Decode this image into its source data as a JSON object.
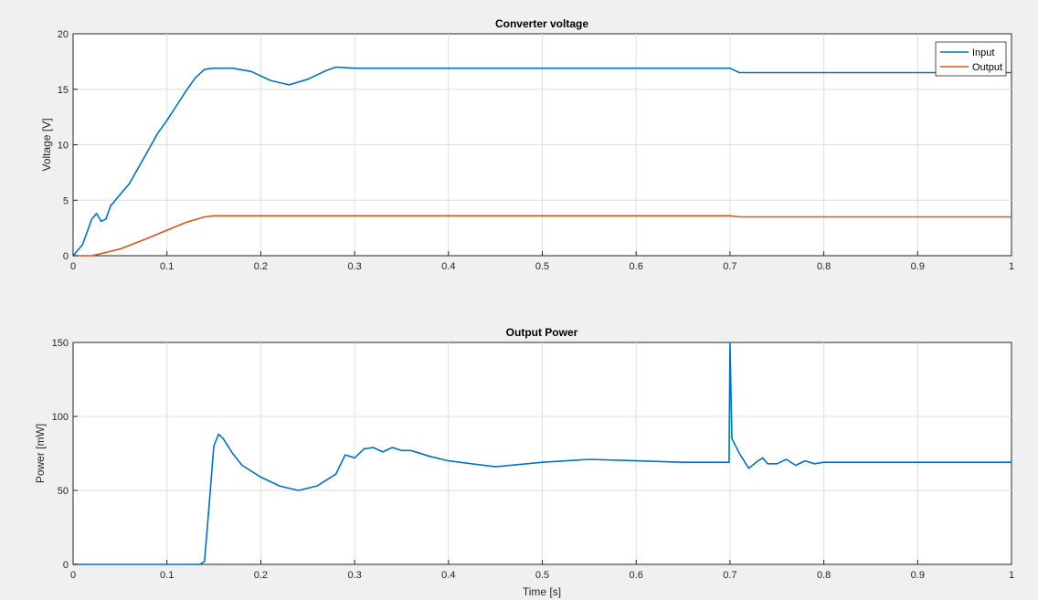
{
  "chart_data": [
    {
      "type": "line",
      "title": "Converter voltage",
      "xlabel": "",
      "ylabel": "Voltage [V]",
      "xlim": [
        0,
        1
      ],
      "ylim": [
        0,
        20
      ],
      "xticks": [
        "0",
        "0.1",
        "0.2",
        "0.3",
        "0.4",
        "0.5",
        "0.6",
        "0.7",
        "0.8",
        "0.9",
        "1"
      ],
      "yticks": [
        "0",
        "5",
        "10",
        "15",
        "20"
      ],
      "grid": true,
      "legend": "top-right",
      "series": [
        {
          "name": "Input",
          "color": "#0072bd",
          "x": [
            0,
            0.01,
            0.02,
            0.025,
            0.03,
            0.035,
            0.04,
            0.05,
            0.06,
            0.07,
            0.08,
            0.09,
            0.1,
            0.11,
            0.12,
            0.13,
            0.14,
            0.15,
            0.17,
            0.19,
            0.21,
            0.23,
            0.25,
            0.27,
            0.28,
            0.3,
            0.4,
            0.5,
            0.6,
            0.7,
            0.71,
            0.8,
            0.9,
            1.0
          ],
          "y": [
            0,
            1,
            3.3,
            3.8,
            3.1,
            3.3,
            4.5,
            5.5,
            6.5,
            8.0,
            9.5,
            11.0,
            12.2,
            13.5,
            14.8,
            16.0,
            16.8,
            16.9,
            16.9,
            16.6,
            15.8,
            15.4,
            15.9,
            16.7,
            17.0,
            16.9,
            16.9,
            16.9,
            16.9,
            16.9,
            16.5,
            16.5,
            16.5,
            16.5
          ]
        },
        {
          "name": "Output",
          "color": "#d95319",
          "x": [
            0,
            0.02,
            0.03,
            0.05,
            0.08,
            0.1,
            0.12,
            0.14,
            0.15,
            0.3,
            0.5,
            0.7,
            0.71,
            1.0
          ],
          "y": [
            0,
            0,
            0.2,
            0.6,
            1.6,
            2.3,
            3.0,
            3.5,
            3.6,
            3.6,
            3.6,
            3.6,
            3.5,
            3.5
          ]
        }
      ]
    },
    {
      "type": "line",
      "title": "Output Power",
      "xlabel": "Time [s]",
      "ylabel": "Power [mW]",
      "xlim": [
        0,
        1
      ],
      "ylim": [
        0,
        150
      ],
      "xticks": [
        "0",
        "0.1",
        "0.2",
        "0.3",
        "0.4",
        "0.5",
        "0.6",
        "0.7",
        "0.8",
        "0.9",
        "1"
      ],
      "yticks": [
        "0",
        "50",
        "100",
        "150"
      ],
      "grid": true,
      "series": [
        {
          "name": "",
          "color": "#0072bd",
          "x": [
            0,
            0.135,
            0.14,
            0.145,
            0.15,
            0.155,
            0.16,
            0.17,
            0.18,
            0.2,
            0.22,
            0.24,
            0.26,
            0.28,
            0.29,
            0.3,
            0.31,
            0.32,
            0.33,
            0.34,
            0.35,
            0.36,
            0.38,
            0.4,
            0.45,
            0.5,
            0.55,
            0.6,
            0.65,
            0.699,
            0.7,
            0.702,
            0.71,
            0.72,
            0.73,
            0.735,
            0.74,
            0.75,
            0.76,
            0.77,
            0.78,
            0.79,
            0.8,
            0.85,
            0.9,
            0.95,
            1.0
          ],
          "y": [
            0,
            0,
            2,
            40,
            80,
            88,
            85,
            75,
            67,
            59,
            53,
            50,
            53,
            61,
            74,
            72,
            78,
            79,
            76,
            79,
            77,
            77,
            73,
            70,
            66,
            69,
            71,
            70,
            69,
            69,
            150,
            85,
            75,
            65,
            70,
            72,
            68,
            68,
            71,
            67,
            70,
            68,
            69,
            69,
            69,
            69,
            69
          ]
        }
      ]
    }
  ]
}
